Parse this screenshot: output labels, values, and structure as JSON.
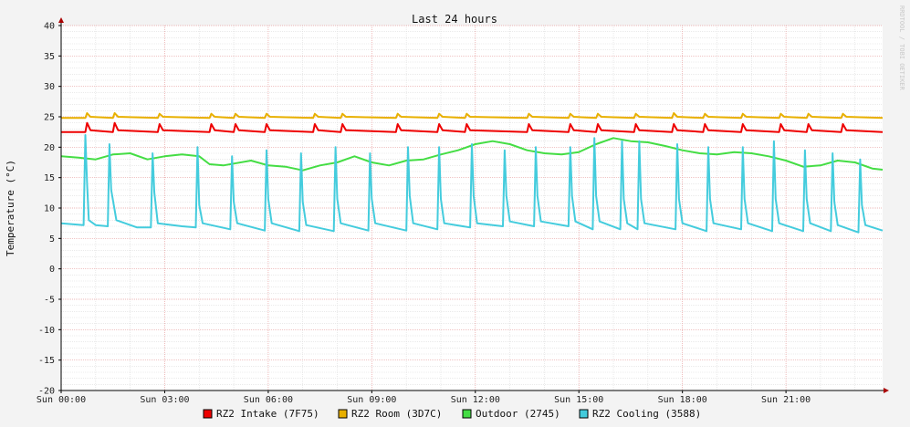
{
  "chart_data": {
    "type": "line",
    "title": "Last 24 hours",
    "ylabel": "Temperature (°C)",
    "watermark": "RRDTOOL / TOBI OETIKER",
    "ylim": [
      -20,
      40
    ],
    "yticks": [
      40,
      35,
      30,
      25,
      20,
      15,
      10,
      5,
      0,
      -5,
      -10,
      -15,
      -20
    ],
    "xlim": [
      0,
      23.8
    ],
    "xticks": [
      {
        "label": "Sun 00:00",
        "value": 0
      },
      {
        "label": "Sun 03:00",
        "value": 3
      },
      {
        "label": "Sun 06:00",
        "value": 6
      },
      {
        "label": "Sun 09:00",
        "value": 9
      },
      {
        "label": "Sun 12:00",
        "value": 12
      },
      {
        "label": "Sun 15:00",
        "value": 15
      },
      {
        "label": "Sun 18:00",
        "value": 18
      },
      {
        "label": "Sun 21:00",
        "value": 21
      }
    ],
    "x_unit": "hours",
    "grid": true,
    "legend_position": "bottom",
    "series": [
      {
        "name": "RZ2 Intake (7F75)",
        "color": "#ee0000",
        "x": [
          0,
          0.7,
          0.75,
          0.85,
          1.5,
          1.55,
          1.65,
          2.8,
          2.85,
          2.95,
          4.3,
          4.35,
          4.45,
          5.0,
          5.05,
          5.15,
          5.9,
          5.95,
          6.05,
          7.3,
          7.35,
          7.45,
          8.1,
          8.15,
          8.25,
          9.7,
          9.75,
          9.85,
          10.9,
          10.95,
          11.05,
          11.7,
          11.75,
          11.85,
          13.5,
          13.55,
          13.65,
          14.7,
          14.75,
          14.85,
          15.5,
          15.55,
          15.65,
          16.6,
          16.65,
          16.75,
          17.7,
          17.75,
          17.85,
          18.6,
          18.65,
          18.75,
          19.7,
          19.75,
          19.85,
          20.8,
          20.85,
          20.95,
          21.6,
          21.65,
          21.75,
          22.6,
          22.65,
          22.75,
          23.8
        ],
        "y": [
          22.5,
          22.5,
          24.0,
          22.8,
          22.5,
          24.0,
          22.8,
          22.5,
          23.8,
          22.8,
          22.5,
          23.8,
          22.8,
          22.5,
          23.8,
          22.8,
          22.5,
          23.8,
          22.8,
          22.5,
          23.8,
          22.8,
          22.5,
          23.8,
          22.8,
          22.5,
          23.8,
          22.8,
          22.5,
          23.8,
          22.8,
          22.5,
          23.8,
          22.8,
          22.5,
          23.8,
          22.8,
          22.5,
          23.8,
          22.8,
          22.5,
          23.8,
          22.8,
          22.5,
          23.8,
          22.8,
          22.5,
          23.8,
          22.8,
          22.5,
          23.8,
          22.8,
          22.5,
          23.8,
          22.8,
          22.5,
          23.8,
          22.8,
          22.5,
          23.8,
          22.8,
          22.5,
          23.8,
          22.8,
          22.5
        ]
      },
      {
        "name": "RZ2 Room (3D7C)",
        "color": "#e8b000",
        "x": [
          0,
          0.7,
          0.75,
          0.85,
          1.5,
          1.55,
          1.65,
          2.8,
          2.85,
          2.95,
          4.3,
          4.35,
          4.45,
          5.0,
          5.05,
          5.15,
          5.9,
          5.95,
          6.05,
          7.3,
          7.35,
          7.45,
          8.1,
          8.15,
          8.25,
          9.7,
          9.75,
          9.85,
          10.9,
          10.95,
          11.05,
          11.7,
          11.75,
          11.85,
          13.5,
          13.55,
          13.65,
          14.7,
          14.75,
          14.85,
          15.5,
          15.55,
          15.65,
          16.6,
          16.65,
          16.75,
          17.7,
          17.75,
          17.85,
          18.6,
          18.65,
          18.75,
          19.7,
          19.75,
          19.85,
          20.8,
          20.85,
          20.95,
          21.6,
          21.65,
          21.75,
          22.6,
          22.65,
          22.75,
          23.8
        ],
        "y": [
          24.8,
          24.8,
          25.6,
          25.0,
          24.8,
          25.6,
          25.0,
          24.8,
          25.5,
          25.0,
          24.8,
          25.5,
          25.0,
          24.8,
          25.5,
          25.0,
          24.8,
          25.5,
          25.0,
          24.8,
          25.5,
          25.0,
          24.8,
          25.5,
          25.0,
          24.8,
          25.5,
          25.0,
          24.8,
          25.5,
          25.0,
          24.8,
          25.5,
          25.0,
          24.8,
          25.5,
          25.0,
          24.8,
          25.5,
          25.0,
          24.8,
          25.5,
          25.0,
          24.8,
          25.5,
          25.0,
          24.8,
          25.6,
          25.0,
          24.8,
          25.5,
          25.0,
          24.8,
          25.5,
          25.0,
          24.8,
          25.5,
          25.0,
          24.8,
          25.5,
          25.0,
          24.8,
          25.5,
          25.0,
          24.8
        ]
      },
      {
        "name": "Outdoor (2745)",
        "color": "#44dd44",
        "x": [
          0,
          0.5,
          1.0,
          1.5,
          2.0,
          2.5,
          3.0,
          3.5,
          4.0,
          4.3,
          4.7,
          5.0,
          5.5,
          6.0,
          6.5,
          7.0,
          7.5,
          8.0,
          8.5,
          9.0,
          9.5,
          10.0,
          10.5,
          11.0,
          11.5,
          12.0,
          12.5,
          13.0,
          13.5,
          14.0,
          14.5,
          15.0,
          15.5,
          16.0,
          16.5,
          17.0,
          17.5,
          18.0,
          18.5,
          19.0,
          19.5,
          20.0,
          20.5,
          21.0,
          21.5,
          22.0,
          22.5,
          23.0,
          23.5,
          23.8
        ],
        "y": [
          18.5,
          18.3,
          18.0,
          18.8,
          19.0,
          18.0,
          18.5,
          18.8,
          18.5,
          17.2,
          17.0,
          17.3,
          17.8,
          17.0,
          16.8,
          16.2,
          17.0,
          17.5,
          18.5,
          17.5,
          17.0,
          17.8,
          18.0,
          18.8,
          19.5,
          20.5,
          21.0,
          20.5,
          19.5,
          19.0,
          18.8,
          19.2,
          20.5,
          21.5,
          21.0,
          20.8,
          20.2,
          19.5,
          19.0,
          18.8,
          19.2,
          19.0,
          18.5,
          17.8,
          16.8,
          17.0,
          17.8,
          17.5,
          16.5,
          16.3
        ]
      },
      {
        "name": "RZ2 Cooling (3588)",
        "color": "#44ccdd",
        "x": [
          0,
          0.65,
          0.7,
          0.75,
          0.8,
          1.0,
          1.35,
          1.4,
          1.45,
          1.6,
          2.2,
          2.6,
          2.65,
          2.7,
          2.8,
          3.5,
          3.9,
          3.95,
          4.0,
          4.1,
          4.9,
          4.95,
          5.0,
          5.1,
          5.9,
          5.95,
          6.0,
          6.1,
          6.9,
          6.95,
          7.0,
          7.1,
          7.9,
          7.95,
          8.0,
          8.1,
          8.9,
          8.95,
          9.0,
          9.1,
          10.0,
          10.05,
          10.1,
          10.2,
          10.9,
          10.95,
          11.0,
          11.1,
          11.85,
          11.9,
          11.95,
          12.05,
          12.8,
          12.85,
          12.9,
          13.0,
          13.7,
          13.75,
          13.8,
          13.9,
          14.7,
          14.75,
          14.8,
          14.9,
          15.4,
          15.45,
          15.5,
          15.6,
          16.2,
          16.25,
          16.3,
          16.4,
          16.7,
          16.75,
          16.8,
          16.9,
          17.8,
          17.85,
          17.9,
          18.0,
          18.7,
          18.75,
          18.8,
          18.9,
          19.7,
          19.75,
          19.8,
          19.9,
          20.6,
          20.65,
          20.7,
          20.8,
          21.5,
          21.55,
          21.6,
          21.7,
          22.3,
          22.35,
          22.4,
          22.5,
          23.1,
          23.15,
          23.2,
          23.3,
          23.8
        ],
        "y": [
          7.5,
          7.2,
          22.0,
          14.0,
          8.0,
          7.2,
          7.0,
          20.5,
          13.0,
          8.0,
          6.8,
          6.8,
          19.0,
          12.5,
          7.5,
          7.0,
          6.8,
          20.0,
          10.5,
          7.5,
          6.5,
          18.5,
          11.0,
          7.5,
          6.3,
          19.5,
          11.5,
          7.5,
          6.2,
          19.0,
          11.0,
          7.2,
          6.2,
          20.0,
          11.5,
          7.5,
          6.3,
          19.0,
          11.5,
          7.5,
          6.3,
          20.0,
          12.0,
          7.5,
          6.5,
          20.0,
          11.5,
          7.5,
          6.8,
          20.5,
          12.0,
          7.5,
          7.0,
          19.5,
          12.0,
          7.8,
          7.0,
          20.0,
          12.0,
          7.8,
          7.0,
          20.0,
          12.0,
          7.8,
          6.5,
          21.5,
          12.0,
          7.8,
          6.5,
          21.0,
          11.5,
          7.5,
          6.5,
          21.0,
          11.5,
          7.5,
          6.5,
          20.5,
          11.5,
          7.5,
          6.2,
          20.0,
          11.5,
          7.5,
          6.5,
          20.0,
          11.5,
          7.5,
          6.2,
          21.0,
          11.5,
          7.5,
          6.2,
          19.5,
          11.5,
          7.5,
          6.2,
          19.0,
          11.0,
          7.2,
          6.0,
          18.0,
          10.5,
          7.2,
          6.3
        ]
      }
    ]
  }
}
